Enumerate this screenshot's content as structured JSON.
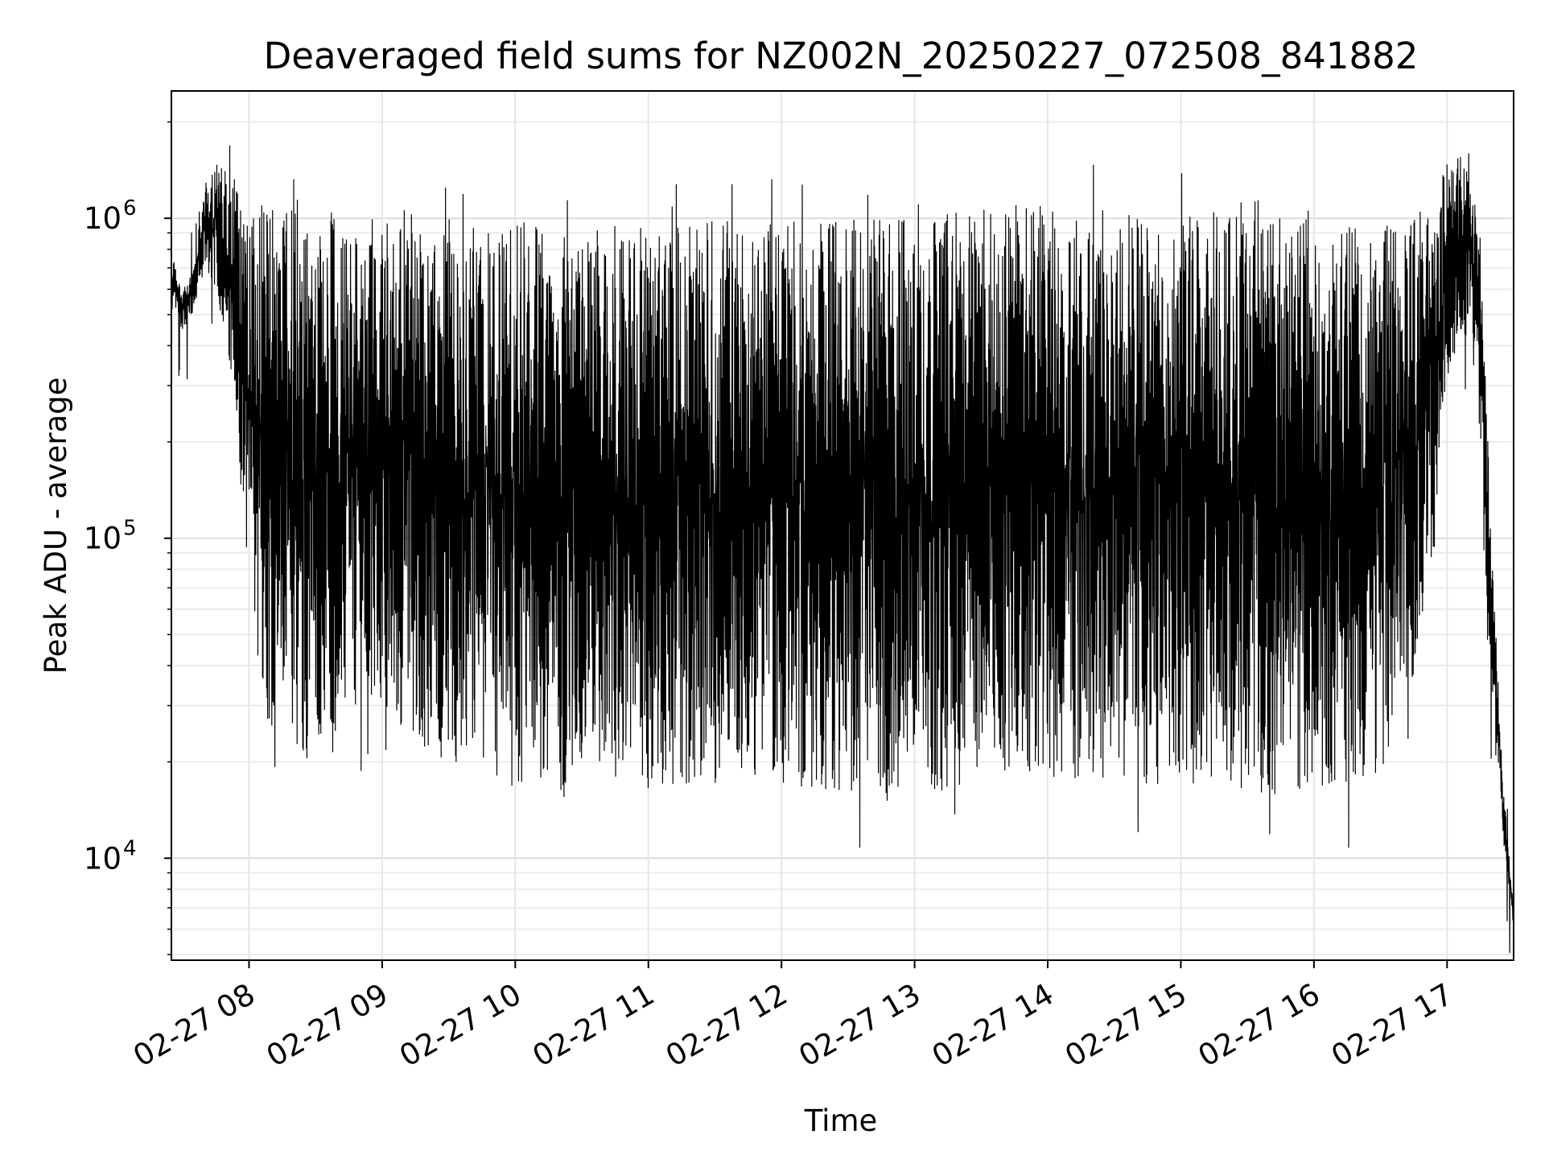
{
  "chart_data": {
    "type": "line",
    "title": "Deaveraged field sums for NZ002N_20250227_072508_841882",
    "xlabel": "Time",
    "ylabel": "Peak ADU - average",
    "yscale": "log",
    "ylim": [
      4800,
      2500000
    ],
    "xlim": [
      "2025-02-27 07:25",
      "2025-02-27 17:30"
    ],
    "x_ticks": [
      "02-27 08",
      "02-27 09",
      "02-27 10",
      "02-27 11",
      "02-27 12",
      "02-27 13",
      "02-27 14",
      "02-27 15",
      "02-27 16",
      "02-27 17"
    ],
    "y_ticks": [
      {
        "base": "10",
        "exp": "4"
      },
      {
        "base": "10",
        "exp": "5"
      },
      {
        "base": "10",
        "exp": "6"
      }
    ],
    "grid": true,
    "line_color": "#000000",
    "series": [
      {
        "x": [
          "07:25",
          "07:30",
          "07:35",
          "07:40",
          "07:45",
          "07:50",
          "07:55",
          "08:00",
          "08:05",
          "08:10",
          "08:15",
          "08:20",
          "08:25",
          "08:30",
          "08:35",
          "08:40",
          "08:45",
          "08:50",
          "08:55",
          "09:00",
          "09:10",
          "09:20",
          "09:30",
          "09:40",
          "09:50",
          "10:00",
          "10:15",
          "10:30",
          "10:45",
          "11:00",
          "11:15",
          "11:30",
          "11:45",
          "12:00",
          "12:15",
          "12:30",
          "12:45",
          "13:00",
          "13:15",
          "13:30",
          "13:45",
          "14:00",
          "14:15",
          "14:30",
          "14:45",
          "15:00",
          "15:15",
          "15:30",
          "15:45",
          "16:00",
          "16:15",
          "16:30",
          "16:45",
          "16:55",
          "17:00",
          "17:05",
          "17:10",
          "17:15",
          "17:20",
          "17:25",
          "17:30"
        ],
        "y_high": [
          800000,
          600000,
          700000,
          1300000,
          1500000,
          1400000,
          1300000,
          1200000,
          1100000,
          1100000,
          1000000,
          1200000,
          1100000,
          1000000,
          1100000,
          1000000,
          1100000,
          1000000,
          1100000,
          1000000,
          1100000,
          1000000,
          1000000,
          950000,
          950000,
          1000000,
          950000,
          900000,
          950000,
          1000000,
          950000,
          1000000,
          950000,
          1000000,
          1050000,
          1000000,
          1000000,
          1000000,
          1050000,
          1100000,
          1100000,
          1100000,
          1100000,
          1050000,
          1050000,
          1050000,
          1050000,
          1050000,
          1000000,
          1000000,
          950000,
          950000,
          1000000,
          1200000,
          1500000,
          1600000,
          1500000,
          900000,
          100000,
          18000,
          7000
        ],
        "y_low": [
          500000,
          450000,
          500000,
          700000,
          600000,
          400000,
          150000,
          80000,
          30000,
          25000,
          28000,
          22000,
          20000,
          22000,
          25000,
          24000,
          28000,
          30000,
          25000,
          28000,
          25000,
          22000,
          20000,
          18000,
          17000,
          16000,
          15000,
          16000,
          17000,
          16000,
          17000,
          17000,
          18000,
          17000,
          16000,
          16000,
          15000,
          15000,
          16000,
          17000,
          18000,
          17000,
          17000,
          18000,
          17000,
          17000,
          17000,
          16000,
          16000,
          16000,
          17000,
          18000,
          35000,
          100000,
          300000,
          400000,
          400000,
          200000,
          30000,
          12000,
          6000
        ]
      }
    ]
  }
}
